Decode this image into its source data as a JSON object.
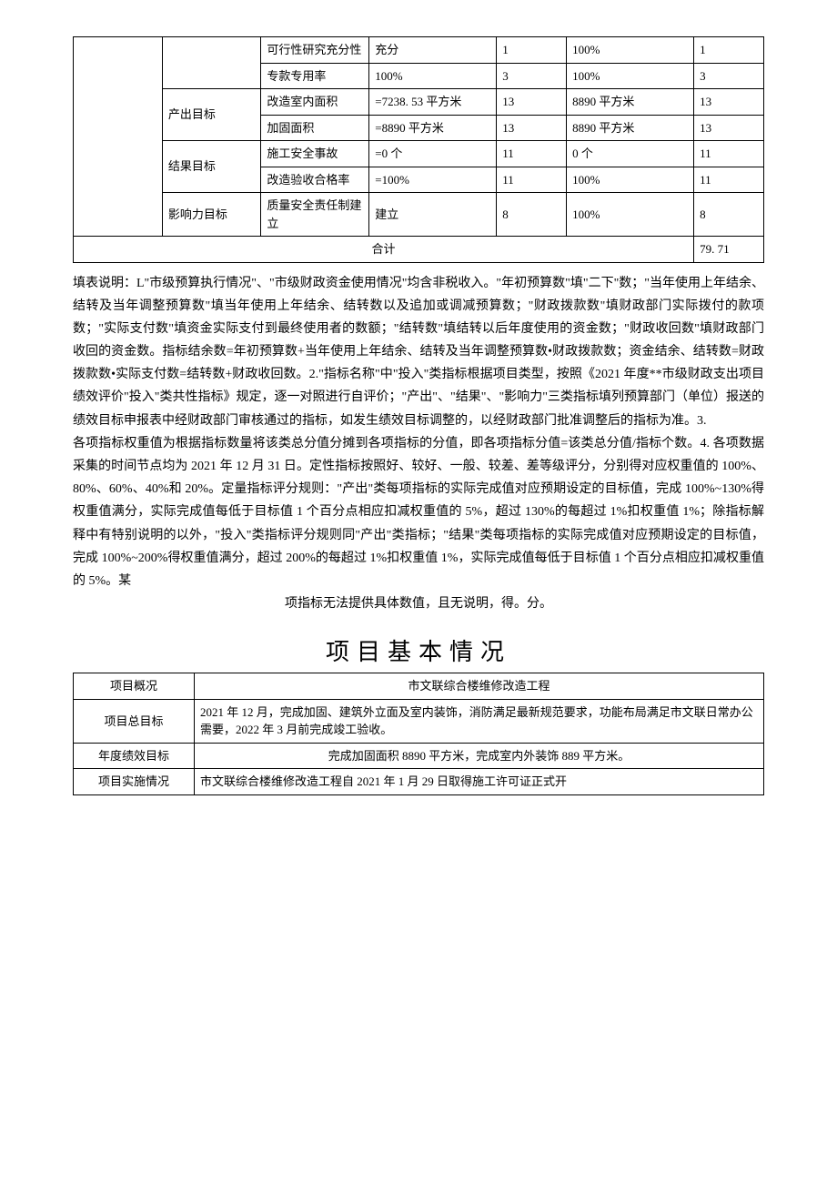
{
  "eval_table": {
    "rows": [
      {
        "goal": "",
        "indicator": "可行性研究充分性",
        "v1": "充分",
        "v2": "1",
        "v3": "100%",
        "v4": "1"
      },
      {
        "goal": "",
        "indicator": "专款专用率",
        "v1": "100%",
        "v2": "3",
        "v3": "100%",
        "v4": "3"
      },
      {
        "goal": "产出目标",
        "rowspan": 2,
        "indicator": "改造室内面积",
        "v1": "=7238. 53 平方米",
        "v2": "13",
        "v3": "8890 平方米",
        "v4": "13"
      },
      {
        "goal": "",
        "indicator": "加固面积",
        "v1": "=8890 平方米",
        "v2": "13",
        "v3": "8890 平方米",
        "v4": "13"
      },
      {
        "goal": "结果目标",
        "rowspan": 2,
        "indicator": "施工安全事故",
        "v1": "=0 个",
        "v2": "11",
        "v3": "0 个",
        "v4": "11"
      },
      {
        "goal": "",
        "indicator": "改造验收合格率",
        "v1": "=100%",
        "v2": "11",
        "v3": "100%",
        "v4": "11"
      },
      {
        "goal": "影响力目标",
        "rowspan": 1,
        "indicator": "质量安全责任制建立",
        "v1": "建立",
        "v2": "8",
        "v3": "100%",
        "v4": "8"
      }
    ],
    "total_label": "合计",
    "total_value": "79. 71"
  },
  "desc": {
    "p1": "填表说明：L\"市级预算执行情况\"、\"市级财政资金使用情况\"均含非税收入。\"年初预算数\"填\"二下\"数；\"当年使用上年结余、结转及当年调整预算数\"填当年使用上年结余、结转数以及追加或调减预算数；\"财政拨款数\"填财政部门实际拨付的款项数；\"实际支付数\"填资金实际支付到最终使用者的数额；\"结转数\"填结转以后年度使用的资金数；\"财政收回数\"填财政部门收回的资金数。指标结余数=年初预算数+当年使用上年结余、结转及当年调整预算数•财政拨款数；资金结余、结转数=财政拨款数•实际支付数=结转数+财政收回数。2.\"指标名称\"中\"投入\"类指标根据项目类型，按照《2021 年度**市级财政支出项目绩效评价\"投入\"类共性指标》规定，逐一对照进行自评价；\"产出\"、\"结果\"、\"影响力\"三类指标填列预算部门（单位）报送的绩效目标申报表中经财政部门审核通过的指标，如发生绩效目标调整的，以经财政部门批准调整后的指标为准。3.",
    "p2": "各项指标权重值为根据指标数量将该类总分值分摊到各项指标的分值，即各项指标分值=该类总分值/指标个数。4. 各项数据采集的时间节点均为 2021 年 12 月 31 日。定性指标按照好、较好、一般、较差、差等级评分，分别得对应权重值的 100%、80%、60%、40%和 20%。定量指标评分规则：\"产出\"类每项指标的实际完成值对应预期设定的目标值，完成 100%~130%得权重值满分，实际完成值每低于目标值 1 个百分点相应扣减权重值的 5%，超过 130%的每超过 1%扣权重值 1%；除指标解释中有特别说明的以外，\"投入\"类指标评分规则同\"产出\"类指标；\"结果\"类每项指标的实际完成值对应预期设定的目标值，完成 100%~200%得权重值满分，超过 200%的每超过 1%扣权重值 1%，实际完成值每低于目标值 1 个百分点相应扣减权重值的 5%。某",
    "p3": "项指标无法提供具体数值，且无说明，得。分。"
  },
  "info": {
    "title": "项目基本情况",
    "overview_label": "项目概况",
    "overview_value": "市文联综合楼维修改造工程",
    "total_goal_label": "项目总目标",
    "total_goal_value": "2021 年 12 月，完成加固、建筑外立面及室内装饰，消防满足最新规范要求，功能布局满足市文联日常办公需要，2022 年 3 月前完成竣工验收。",
    "year_goal_label": "年度绩效目标",
    "year_goal_value": "完成加固面积 8890 平方米，完成室内外装饰 889 平方米。",
    "impl_label": "项目实施情况",
    "impl_value": "市文联综合楼维修改造工程自 2021 年 1 月 29 日取得施工许可证正式开"
  }
}
